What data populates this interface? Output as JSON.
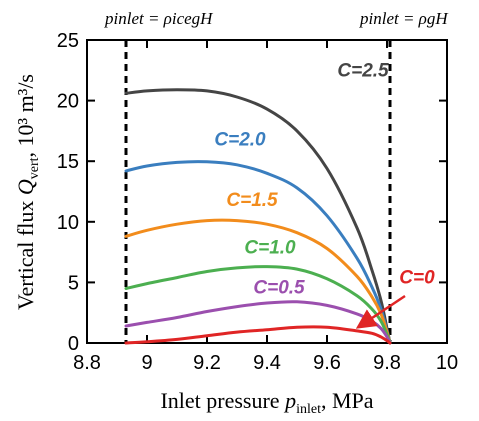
{
  "chart_data": {
    "type": "line",
    "xlabel_pre": "Inlet pressure ",
    "xlabel_var": "p",
    "xlabel_sub": "inlet",
    "xlabel_post": ", MPa",
    "ylabel_pre": "Vertical flux ",
    "ylabel_var": "Q",
    "ylabel_sub": "vert",
    "ylabel_post": ", 10³ m³/s",
    "xlim": [
      8.8,
      10.0
    ],
    "ylim": [
      0,
      25
    ],
    "xticks": [
      "8.8",
      "9",
      "9.2",
      "9.4",
      "9.6",
      "9.8",
      "10"
    ],
    "xtick_values": [
      8.8,
      9.0,
      9.2,
      9.4,
      9.6,
      9.8,
      10.0
    ],
    "yticks": [
      "0",
      "5",
      "10",
      "15",
      "20",
      "25"
    ],
    "ytick_values": [
      0,
      5,
      10,
      15,
      20,
      25
    ],
    "grid": false,
    "vlines": [
      {
        "x": 8.93,
        "label": "p_inlet = ρ_ice g H"
      },
      {
        "x": 9.81,
        "label": "p_inlet = ρ g H"
      }
    ],
    "top_labels": {
      "left": "pinlet = ρicegH",
      "right": "pinlet = ρgH"
    },
    "series": [
      {
        "name": "C=2.5",
        "color": "#454545",
        "x": [
          8.93,
          9.0,
          9.1,
          9.2,
          9.3,
          9.4,
          9.5,
          9.6,
          9.7,
          9.75,
          9.78,
          9.8,
          9.81
        ],
        "y": [
          20.6,
          20.8,
          20.9,
          20.8,
          20.3,
          19.3,
          17.5,
          14.4,
          9.5,
          6.0,
          3.5,
          1.2,
          0.0
        ]
      },
      {
        "name": "C=2.0",
        "color": "#3a7ebf",
        "x": [
          8.93,
          9.0,
          9.1,
          9.2,
          9.3,
          9.4,
          9.5,
          9.6,
          9.7,
          9.75,
          9.78,
          9.8,
          9.81
        ],
        "y": [
          14.2,
          14.6,
          14.9,
          14.95,
          14.7,
          14.0,
          12.8,
          10.5,
          7.0,
          4.6,
          2.8,
          1.0,
          0.0
        ]
      },
      {
        "name": "C=1.5",
        "color": "#f28c1c",
        "x": [
          8.93,
          9.0,
          9.1,
          9.2,
          9.3,
          9.4,
          9.5,
          9.6,
          9.7,
          9.75,
          9.78,
          9.8,
          9.81
        ],
        "y": [
          8.8,
          9.3,
          9.8,
          10.1,
          10.1,
          9.8,
          9.1,
          7.8,
          5.5,
          3.8,
          2.4,
          0.9,
          0.0
        ]
      },
      {
        "name": "C=1.0",
        "color": "#4caf50",
        "x": [
          8.93,
          9.0,
          9.1,
          9.2,
          9.3,
          9.4,
          9.5,
          9.6,
          9.7,
          9.75,
          9.78,
          9.8,
          9.81
        ],
        "y": [
          4.5,
          4.9,
          5.4,
          5.9,
          6.2,
          6.3,
          6.1,
          5.3,
          3.9,
          2.8,
          1.8,
          0.7,
          0.0
        ]
      },
      {
        "name": "C=0.5",
        "color": "#9b4fae",
        "x": [
          8.93,
          9.0,
          9.1,
          9.2,
          9.3,
          9.4,
          9.5,
          9.6,
          9.7,
          9.75,
          9.78,
          9.8,
          9.81
        ],
        "y": [
          1.4,
          1.7,
          2.1,
          2.6,
          3.0,
          3.3,
          3.4,
          3.1,
          2.4,
          1.8,
          1.2,
          0.5,
          0.0
        ]
      },
      {
        "name": "C=0",
        "color": "#e02525",
        "x": [
          8.93,
          9.0,
          9.1,
          9.2,
          9.3,
          9.4,
          9.5,
          9.6,
          9.7,
          9.75,
          9.78,
          9.8,
          9.81
        ],
        "y": [
          0.0,
          0.1,
          0.3,
          0.6,
          0.9,
          1.1,
          1.3,
          1.3,
          1.0,
          0.8,
          0.5,
          0.2,
          0.0
        ]
      }
    ],
    "curve_labels": [
      {
        "text": "C=2.5",
        "color": "#454545",
        "x": 9.72,
        "y": 22.0
      },
      {
        "text": "C=2.0",
        "color": "#3a7ebf",
        "x": 9.31,
        "y": 16.3
      },
      {
        "text": "C=1.5",
        "color": "#f28c1c",
        "x": 9.35,
        "y": 11.3
      },
      {
        "text": "C=1.0",
        "color": "#4caf50",
        "x": 9.41,
        "y": 7.4
      },
      {
        "text": "C=0.5",
        "color": "#9b4fae",
        "x": 9.44,
        "y": 4.1
      },
      {
        "text": "C=0",
        "color": "#e02525",
        "x": 9.9,
        "y": 4.9
      }
    ]
  }
}
